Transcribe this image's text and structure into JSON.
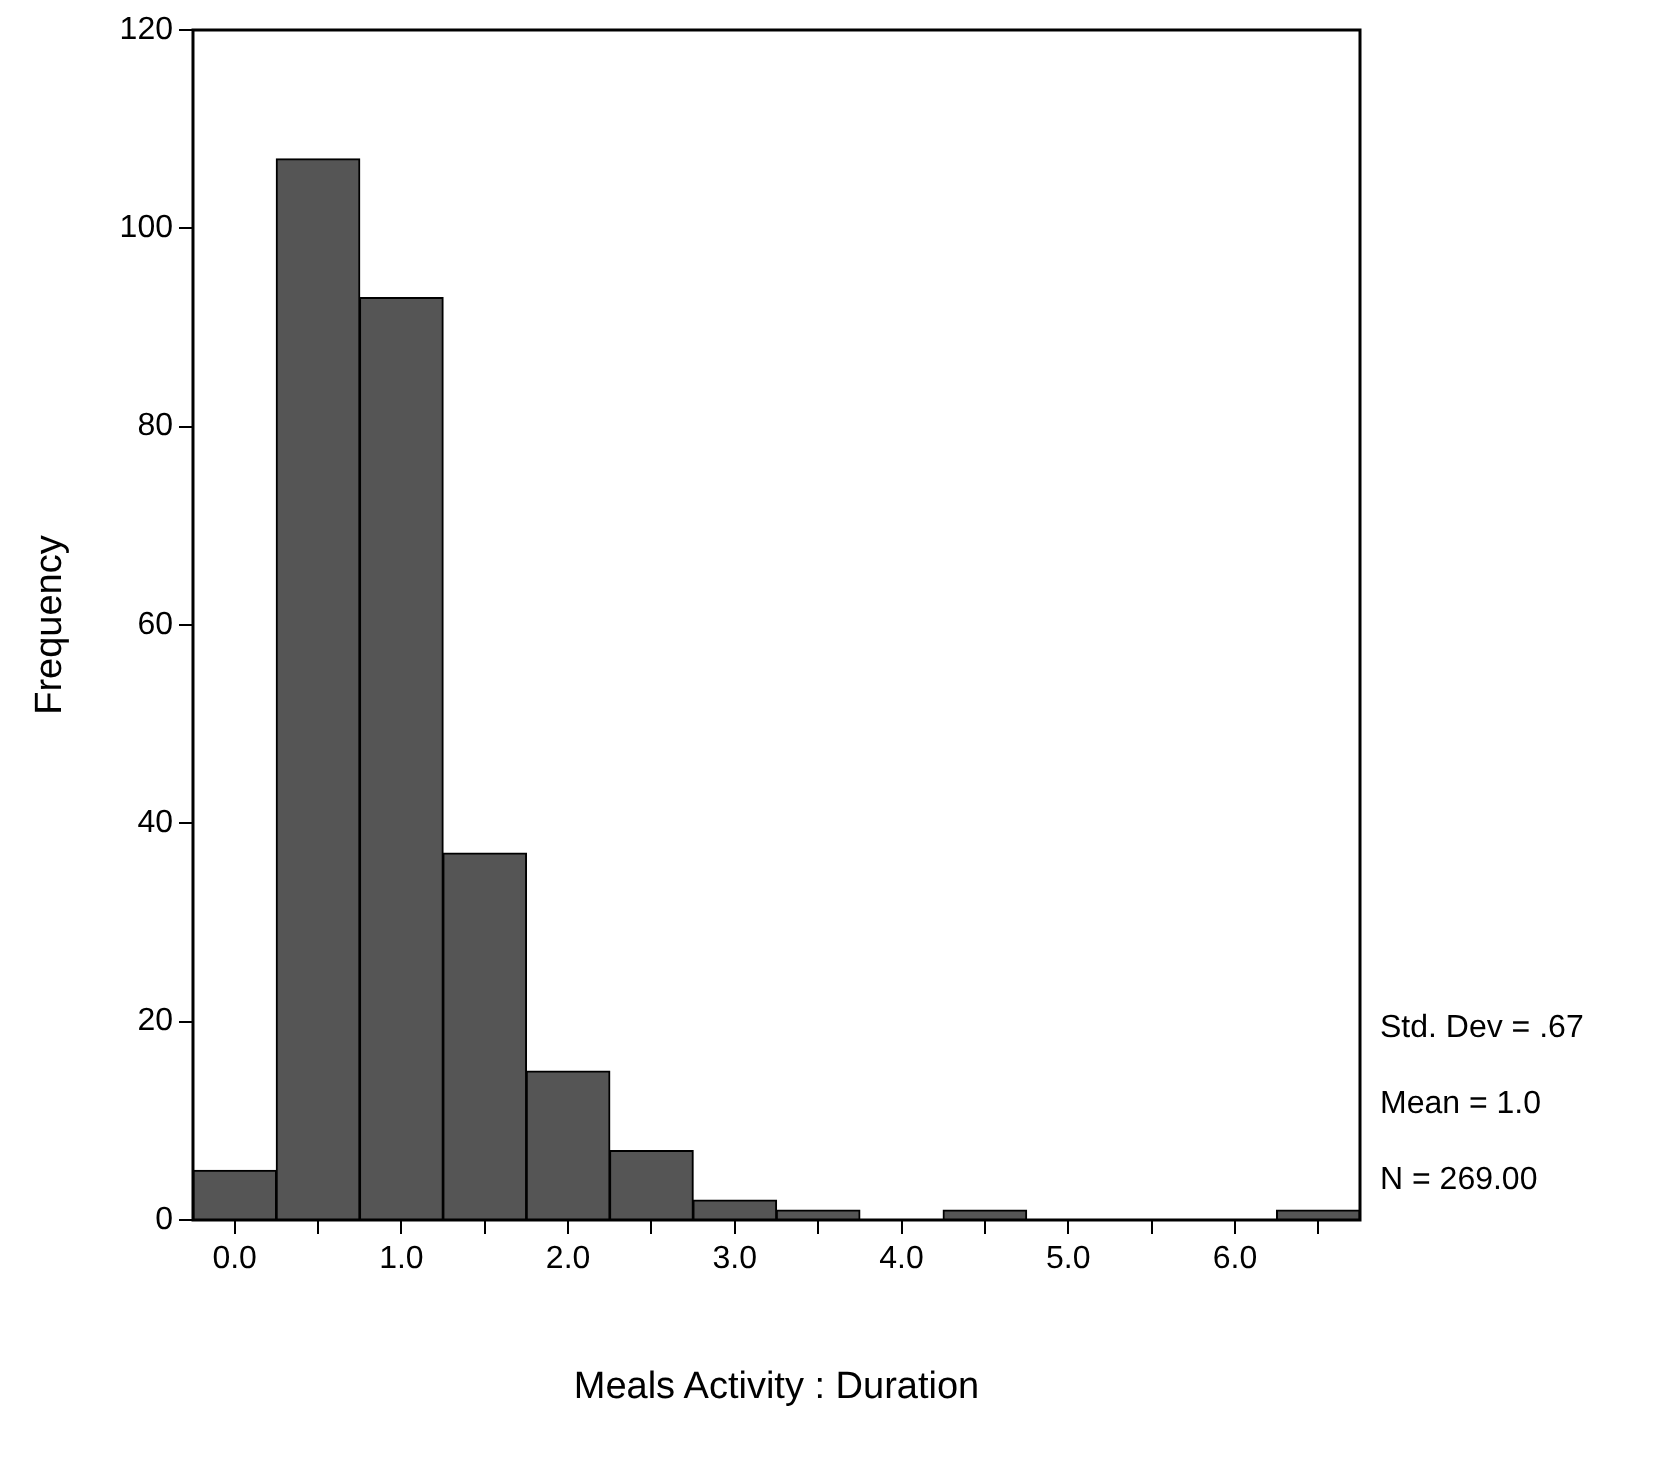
{
  "chart_data": {
    "type": "histogram",
    "xlabel": "Meals Activity : Duration",
    "ylabel": "Frequency",
    "bins": [
      -0.25,
      0.25,
      0.75,
      1.25,
      1.75,
      2.25,
      2.75,
      3.25,
      3.75,
      4.25,
      4.75,
      5.25,
      5.75,
      6.25,
      6.75
    ],
    "values": [
      5,
      107,
      93,
      37,
      15,
      7,
      2,
      1,
      0,
      1,
      0,
      0,
      0,
      1
    ],
    "color": "#555555",
    "xlim": [
      -0.25,
      6.75
    ],
    "xticks": [
      {
        "value": 0,
        "label": "0.0"
      },
      {
        "value": 0.5,
        "label": null
      },
      {
        "value": 1,
        "label": "1.0"
      },
      {
        "value": 1.5,
        "label": null
      },
      {
        "value": 2,
        "label": "2.0"
      },
      {
        "value": 2.5,
        "label": null
      },
      {
        "value": 3,
        "label": "3.0"
      },
      {
        "value": 3.5,
        "label": null
      },
      {
        "value": 4,
        "label": "4.0"
      },
      {
        "value": 4.5,
        "label": null
      },
      {
        "value": 5,
        "label": "5.0"
      },
      {
        "value": 5.5,
        "label": null
      },
      {
        "value": 6,
        "label": "6.0"
      },
      {
        "value": 6.5,
        "label": null
      }
    ],
    "ylim": [
      0,
      120
    ],
    "yticks": [
      0,
      20,
      40,
      60,
      80,
      100,
      120
    ],
    "grid": false,
    "legend": false,
    "annotations": [
      "Std. Dev = .67",
      "Mean = 1.0",
      "N = 269.00"
    ]
  }
}
